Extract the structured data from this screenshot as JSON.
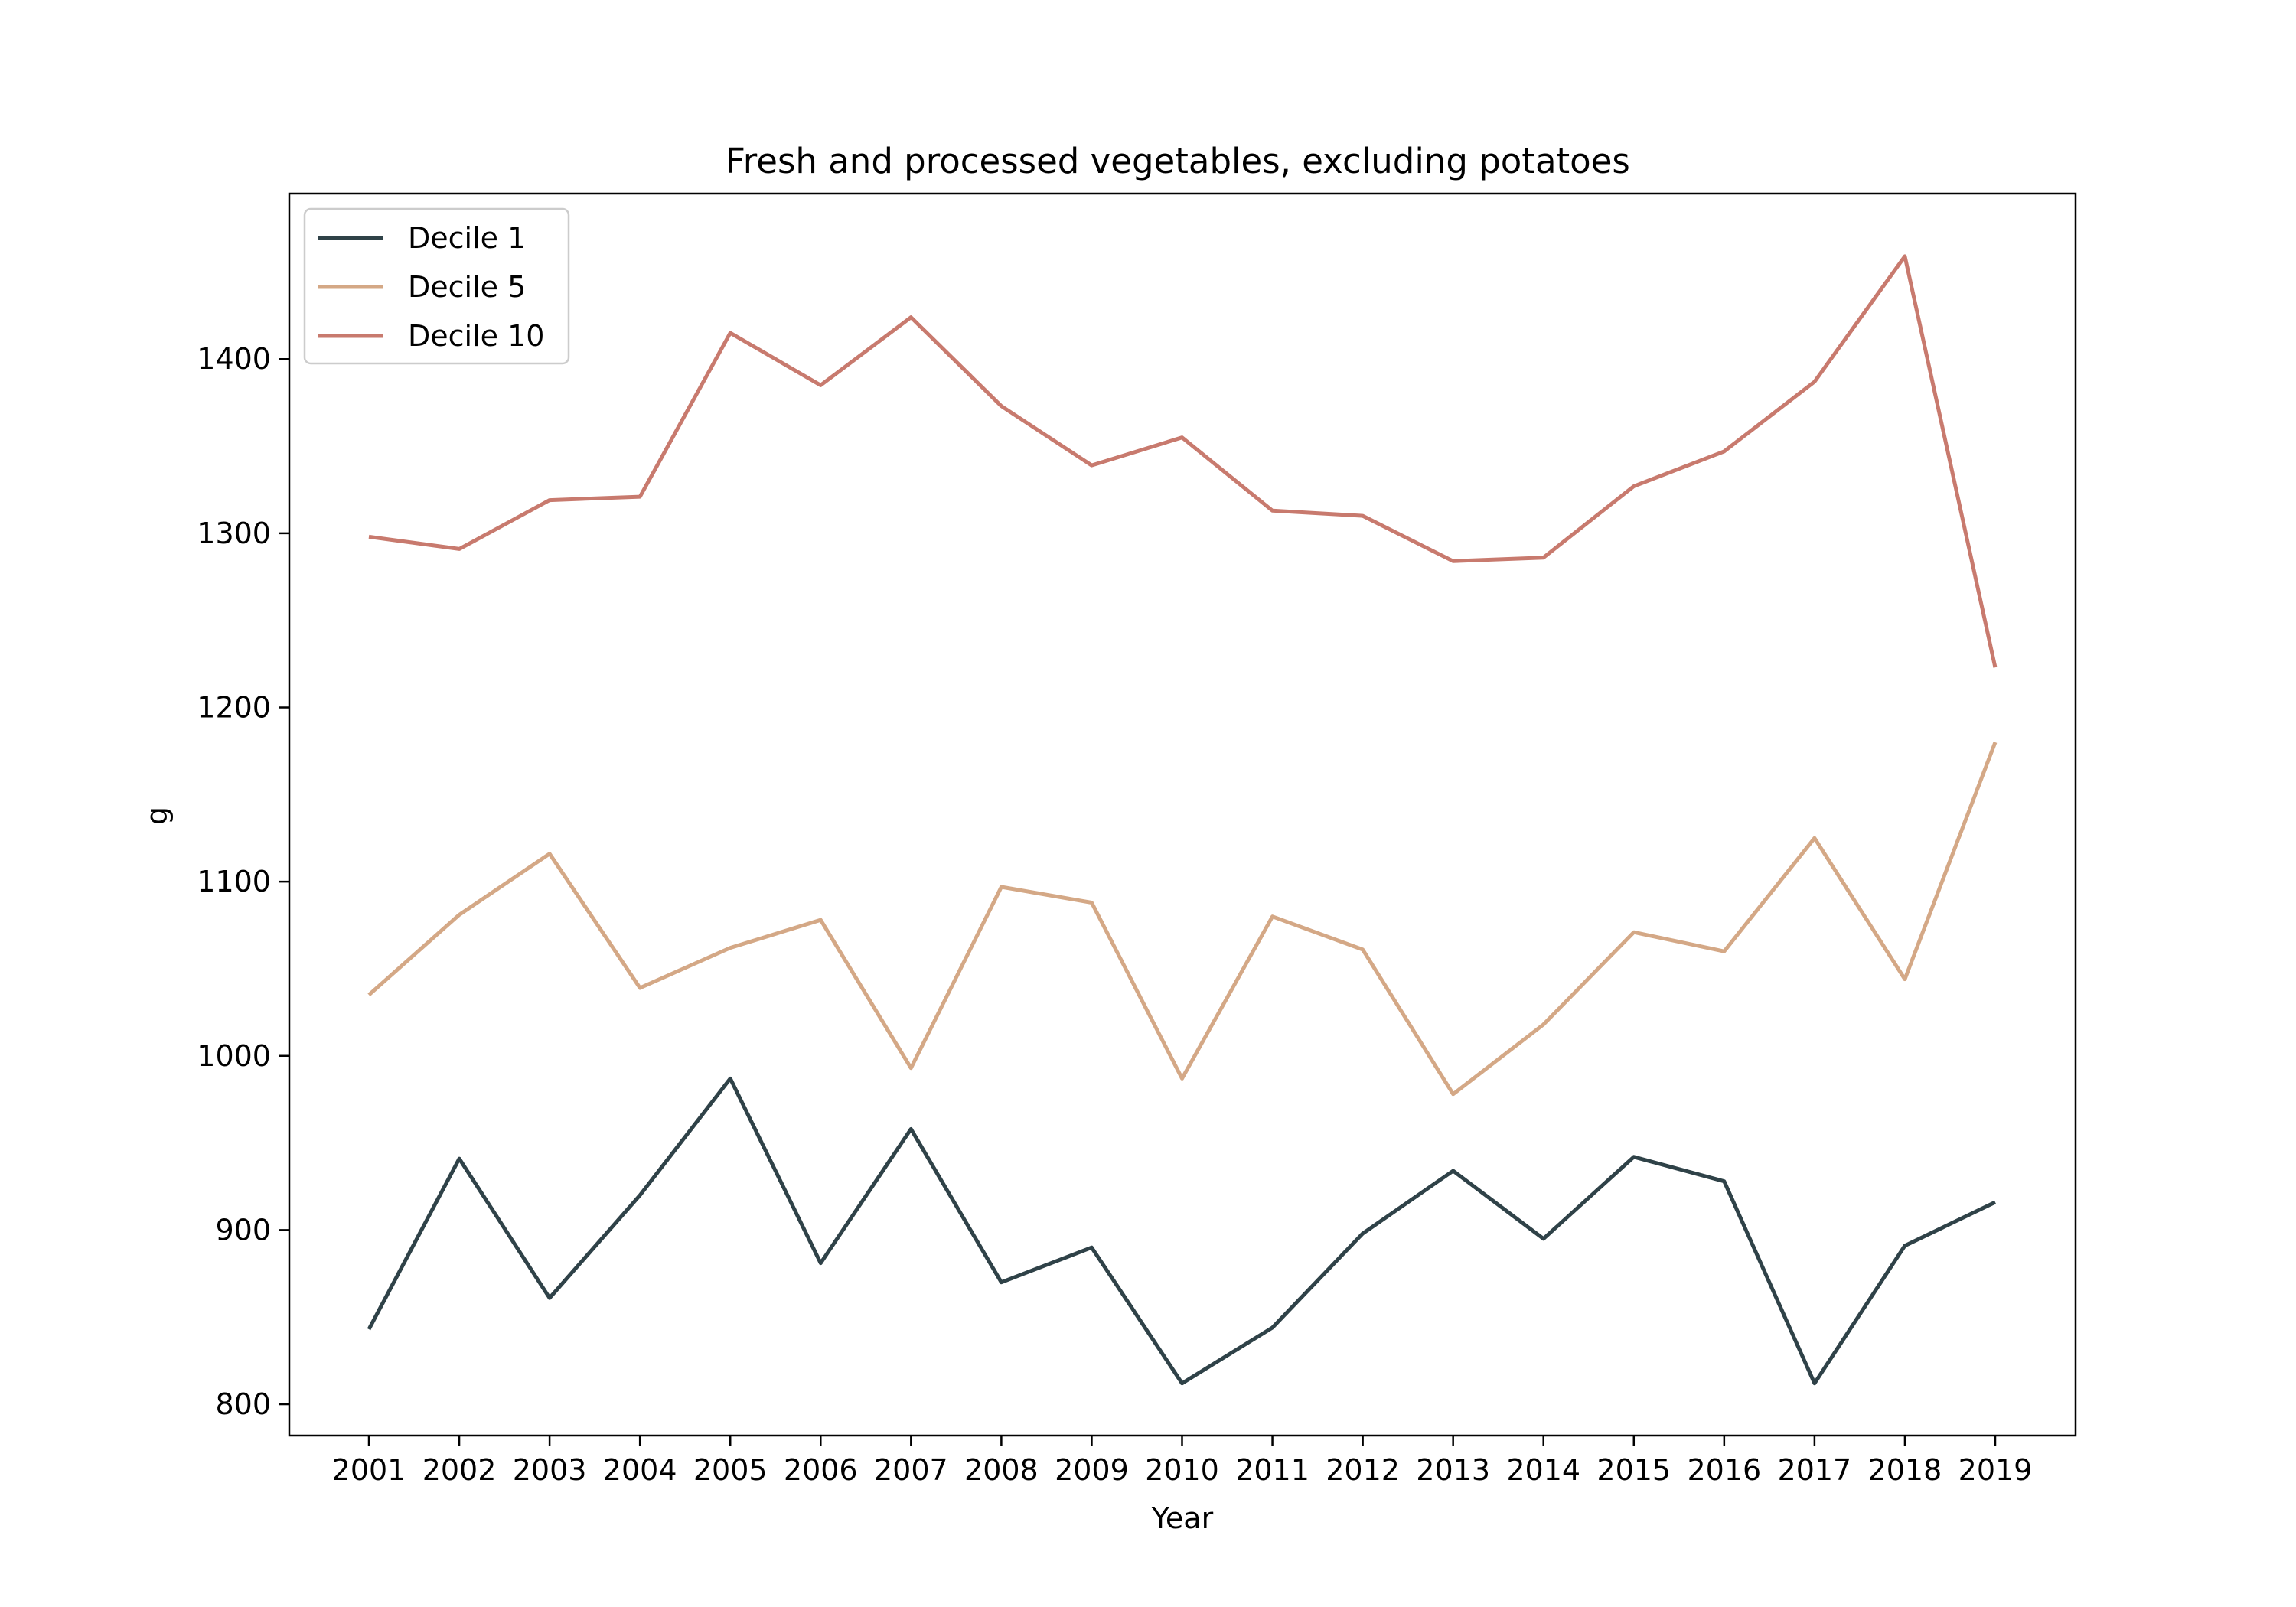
{
  "chart_data": {
    "type": "line",
    "title": "Fresh and processed vegetables, excluding potatoes",
    "xlabel": "Year",
    "ylabel": "g",
    "x": [
      "2001",
      "2002",
      "2003",
      "2004",
      "2005",
      "2006",
      "2007",
      "2008",
      "2009",
      "2010",
      "2011",
      "2012",
      "2013",
      "2014",
      "2015",
      "2016",
      "2017",
      "2018",
      "2019"
    ],
    "ylim": [
      782,
      1495
    ],
    "yticks": [
      800,
      900,
      1000,
      1100,
      1200,
      1300,
      1400
    ],
    "grid": false,
    "legend": "top-left",
    "series": [
      {
        "name": "Decile 1",
        "color": "#2f4248",
        "values": [
          843,
          941,
          861,
          920,
          987,
          881,
          958,
          870,
          890,
          812,
          844,
          898,
          934,
          895,
          942,
          928,
          812,
          891,
          916
        ]
      },
      {
        "name": "Decile 5",
        "color": "#d4a886",
        "values": [
          1035,
          1081,
          1116,
          1039,
          1062,
          1078,
          993,
          1097,
          1088,
          987,
          1080,
          1061,
          978,
          1018,
          1071,
          1060,
          1125,
          1044,
          1180
        ]
      },
      {
        "name": "Decile 10",
        "color": "#c87a6e",
        "values": [
          1298,
          1291,
          1319,
          1321,
          1415,
          1385,
          1424,
          1373,
          1339,
          1355,
          1313,
          1310,
          1284,
          1286,
          1327,
          1347,
          1387,
          1459,
          1223
        ]
      }
    ]
  }
}
